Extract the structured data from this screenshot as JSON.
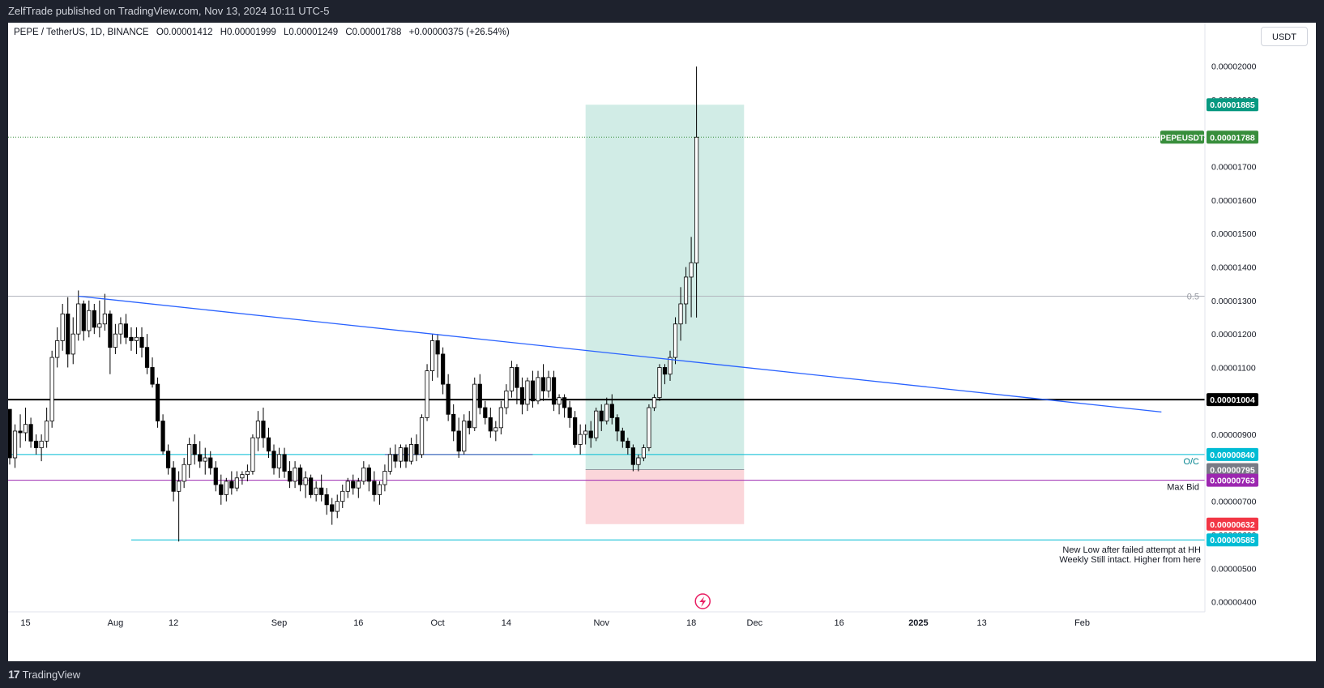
{
  "header": {
    "published_text": "ZelfTrade published on TradingView.com, Nov 13, 2024 10:11 UTC-5"
  },
  "legend": {
    "symbol": "PEPE / TetherUS, 1D, BINANCE",
    "open": "O0.00001412",
    "high": "H0.00001999",
    "low": "L0.00001249",
    "close": "C0.00001788",
    "change": "+0.00000375 (+26.54%)"
  },
  "currency_button": "USDT",
  "footer": {
    "brand": "TradingView",
    "logo_glyph": "17"
  },
  "annotations": {
    "fib_label": "0.5",
    "oc_label": "O/C",
    "max_bid_label": "Max Bid",
    "note_line1": "New Low after failed attempt at HH",
    "note_line2": "Weekly Still intact. Higher from here"
  },
  "colors": {
    "bull_body": "#ffffff",
    "bear_body": "#000000",
    "candle_outline": "#000000",
    "trendline": "#2962ff",
    "cyan_line": "#00bcd4",
    "purple_line": "#9c27b0",
    "profit_zone": "#d1ece6",
    "loss_zone": "#fbd6da"
  },
  "chart_data": {
    "type": "candlestick",
    "y_axis": {
      "range": [
        3.7e-06,
        2.13e-05
      ],
      "ticks": [
        "0.00002000",
        "0.00001900",
        "0.00001800",
        "0.00001700",
        "0.00001600",
        "0.00001500",
        "0.00001400",
        "0.00001300",
        "0.00001200",
        "0.00001100",
        "0.00001000",
        "0.00000900",
        "0.00000800",
        "0.00000700",
        "0.00000600",
        "0.00000500",
        "0.00000400"
      ]
    },
    "x_axis": {
      "ticks": [
        {
          "label": "15",
          "bar": 3
        },
        {
          "label": "Aug",
          "bar": 20
        },
        {
          "label": "12",
          "bar": 31
        },
        {
          "label": "Sep",
          "bar": 51
        },
        {
          "label": "16",
          "bar": 66
        },
        {
          "label": "Oct",
          "bar": 81
        },
        {
          "label": "14",
          "bar": 94
        },
        {
          "label": "Nov",
          "bar": 112
        },
        {
          "label": "18",
          "bar": 129
        },
        {
          "label": "Dec",
          "bar": 141
        },
        {
          "label": "16",
          "bar": 157
        },
        {
          "label": "2025",
          "bar": 172
        },
        {
          "label": "13",
          "bar": 184
        },
        {
          "label": "Feb",
          "bar": 203
        }
      ]
    },
    "candles": [
      [
        9.75e-06,
        9.75e-06,
        8.1e-06,
        8.3e-06
      ],
      [
        8.3e-06,
        9.3e-06,
        8e-06,
        9.1e-06
      ],
      [
        9.1e-06,
        9.6e-06,
        8.6e-06,
        9.05e-06
      ],
      [
        9.05e-06,
        9.8e-06,
        8.8e-06,
        9.3e-06
      ],
      [
        9.3e-06,
        9.5e-06,
        8.6e-06,
        8.8e-06
      ],
      [
        8.8e-06,
        9e-06,
        8.4e-06,
        8.6e-06
      ],
      [
        8.6e-06,
        9e-06,
        8.2e-06,
        8.8e-06
      ],
      [
        8.8e-06,
        9.8e-06,
        8.6e-06,
        9.4e-06
      ],
      [
        9.4e-06,
        1.15e-05,
        9.2e-06,
        1.13e-05
      ],
      [
        1.13e-05,
        1.22e-05,
        1.1e-05,
        1.18e-05
      ],
      [
        1.18e-05,
        1.29e-05,
        1.15e-05,
        1.26e-05
      ],
      [
        1.26e-05,
        1.31e-05,
        1.1e-05,
        1.14e-05
      ],
      [
        1.14e-05,
        1.25e-05,
        1.11e-05,
        1.2e-05
      ],
      [
        1.2e-05,
        1.33e-05,
        1.18e-05,
        1.29e-05
      ],
      [
        1.29e-05,
        1.3e-05,
        1.18e-05,
        1.21e-05
      ],
      [
        1.21e-05,
        1.3e-05,
        1.19e-05,
        1.27e-05
      ],
      [
        1.27e-05,
        1.29e-05,
        1.2e-05,
        1.22e-05
      ],
      [
        1.22e-05,
        1.3e-05,
        1.19e-05,
        1.23e-05
      ],
      [
        1.23e-05,
        1.32e-05,
        1.21e-05,
        1.26e-05
      ],
      [
        1.26e-05,
        1.27e-05,
        1.08e-05,
        1.16e-05
      ],
      [
        1.16e-05,
        1.23e-05,
        1.14e-05,
        1.2e-05
      ],
      [
        1.2e-05,
        1.25e-05,
        1.17e-05,
        1.23e-05
      ],
      [
        1.23e-05,
        1.26e-05,
        1.17e-05,
        1.19e-05
      ],
      [
        1.19e-05,
        1.22e-05,
        1.15e-05,
        1.18e-05
      ],
      [
        1.18e-05,
        1.22e-05,
        1.14e-05,
        1.19e-05
      ],
      [
        1.19e-05,
        1.22e-05,
        1.13e-05,
        1.16e-05
      ],
      [
        1.16e-05,
        1.2e-05,
        1.08e-05,
        1.1e-05
      ],
      [
        1.1e-05,
        1.13e-05,
        1.04e-05,
        1.05e-05
      ],
      [
        1.05e-05,
        1.07e-05,
        9.2e-06,
        9.4e-06
      ],
      [
        9.4e-06,
        9.6e-06,
        8.4e-06,
        8.5e-06
      ],
      [
        8.5e-06,
        8.7e-06,
        7.8e-06,
        8e-06
      ],
      [
        8e-06,
        8.2e-06,
        7e-06,
        7.3e-06
      ],
      [
        7.3e-06,
        7.9e-06,
        5.8e-06,
        7.6e-06
      ],
      [
        7.6e-06,
        8.3e-06,
        7.4e-06,
        8.1e-06
      ],
      [
        8.1e-06,
        8.9e-06,
        7.7e-06,
        8.7e-06
      ],
      [
        8.7e-06,
        9e-06,
        8.1e-06,
        8.4e-06
      ],
      [
        8.4e-06,
        8.8e-06,
        8e-06,
        8.2e-06
      ],
      [
        8.2e-06,
        8.6e-06,
        7.8e-06,
        8.3e-06
      ],
      [
        8.3e-06,
        8.5e-06,
        7.8e-06,
        8e-06
      ],
      [
        8e-06,
        8.2e-06,
        7.3e-06,
        7.5e-06
      ],
      [
        7.5e-06,
        7.8e-06,
        6.9e-06,
        7.2e-06
      ],
      [
        7.2e-06,
        7.7e-06,
        7e-06,
        7.6e-06
      ],
      [
        7.6e-06,
        7.9e-06,
        7.2e-06,
        7.4e-06
      ],
      [
        7.4e-06,
        7.9e-06,
        7.3e-06,
        7.7e-06
      ],
      [
        7.7e-06,
        7.9e-06,
        7.5e-06,
        7.8e-06
      ],
      [
        7.8e-06,
        8.1e-06,
        7.6e-06,
        7.9e-06
      ],
      [
        7.9e-06,
        9e-06,
        7.8e-06,
        8.9e-06
      ],
      [
        8.9e-06,
        9.7e-06,
        8.5e-06,
        9.4e-06
      ],
      [
        9.4e-06,
        9.8e-06,
        8.6e-06,
        8.9e-06
      ],
      [
        8.9e-06,
        9.2e-06,
        8.3e-06,
        8.5e-06
      ],
      [
        8.5e-06,
        8.7e-06,
        7.8e-06,
        8e-06
      ],
      [
        8e-06,
        8.6e-06,
        7.7e-06,
        8.4e-06
      ],
      [
        8.4e-06,
        8.6e-06,
        7.7e-06,
        7.9e-06
      ],
      [
        7.9e-06,
        8.2e-06,
        7.4e-06,
        7.6e-06
      ],
      [
        7.6e-06,
        8.2e-06,
        7.4e-06,
        8e-06
      ],
      [
        8e-06,
        8.1e-06,
        7.3e-06,
        7.5e-06
      ],
      [
        7.5e-06,
        7.9e-06,
        7.1e-06,
        7.7e-06
      ],
      [
        7.7e-06,
        7.8e-06,
        7.1e-06,
        7.2e-06
      ],
      [
        7.2e-06,
        7.6e-06,
        7e-06,
        7.4e-06
      ],
      [
        7.4e-06,
        7.8e-06,
        7e-06,
        7.2e-06
      ],
      [
        7.2e-06,
        7.4e-06,
        6.6e-06,
        6.9e-06
      ],
      [
        6.9e-06,
        7.1e-06,
        6.3e-06,
        6.7e-06
      ],
      [
        6.7e-06,
        7.2e-06,
        6.5e-06,
        7e-06
      ],
      [
        7e-06,
        7.5e-06,
        6.8e-06,
        7.3e-06
      ],
      [
        7.3e-06,
        7.7e-06,
        7.1e-06,
        7.6e-06
      ],
      [
        7.6e-06,
        7.8e-06,
        7.2e-06,
        7.4e-06
      ],
      [
        7.4e-06,
        7.7e-06,
        7.1e-06,
        7.6e-06
      ],
      [
        7.6e-06,
        8.2e-06,
        7.5e-06,
        8e-06
      ],
      [
        8e-06,
        8.1e-06,
        7.3e-06,
        7.6e-06
      ],
      [
        7.6e-06,
        7.9e-06,
        7e-06,
        7.2e-06
      ],
      [
        7.2e-06,
        7.6e-06,
        6.9e-06,
        7.5e-06
      ],
      [
        7.5e-06,
        8.1e-06,
        7.3e-06,
        7.9e-06
      ],
      [
        7.9e-06,
        8.6e-06,
        7.8e-06,
        8.4e-06
      ],
      [
        8.4e-06,
        8.7e-06,
        8e-06,
        8.2e-06
      ],
      [
        8.2e-06,
        8.7e-06,
        8e-06,
        8.6e-06
      ],
      [
        8.6e-06,
        8.7e-06,
        8e-06,
        8.2e-06
      ],
      [
        8.2e-06,
        8.9e-06,
        8.1e-06,
        8.7e-06
      ],
      [
        8.7e-06,
        9e-06,
        8.2e-06,
        8.4e-06
      ],
      [
        8.4e-06,
        9.6e-06,
        8.3e-06,
        9.5e-06
      ],
      [
        9.5e-06,
        1.11e-05,
        9.4e-06,
        1.09e-05
      ],
      [
        1.09e-05,
        1.2e-05,
        1.06e-05,
        1.18e-05
      ],
      [
        1.18e-05,
        1.2e-05,
        1.07e-05,
        1.14e-05
      ],
      [
        1.14e-05,
        1.16e-05,
        1.02e-05,
        1.05e-05
      ],
      [
        1.05e-05,
        1.08e-05,
        9.4e-06,
        9.6e-06
      ],
      [
        9.6e-06,
        9.9e-06,
        8.8e-06,
        9.1e-06
      ],
      [
        9.1e-06,
        9.5e-06,
        8.3e-06,
        8.5e-06
      ],
      [
        8.5e-06,
        9.6e-06,
        8.4e-06,
        9.4e-06
      ],
      [
        9.4e-06,
        9.7e-06,
        9e-06,
        9.2e-06
      ],
      [
        9.2e-06,
        1.07e-05,
        9.1e-06,
        1.05e-05
      ],
      [
        1.05e-05,
        1.08e-05,
        9.6e-06,
        9.8e-06
      ],
      [
        9.8e-06,
        1e-05,
        9.3e-06,
        9.5e-06
      ],
      [
        9.5e-06,
        9.8e-06,
        8.9e-06,
        9.1e-06
      ],
      [
        9.1e-06,
        9.4e-06,
        8.8e-06,
        9.2e-06
      ],
      [
        9.2e-06,
        1e-05,
        9e-06,
        9.8e-06
      ],
      [
        9.8e-06,
        1.05e-05,
        9.6e-06,
        1.03e-05
      ],
      [
        1.03e-05,
        1.12e-05,
        1.01e-05,
        1.1e-05
      ],
      [
        1.1e-05,
        1.11e-05,
        9.9e-06,
        1.04e-05
      ],
      [
        1.04e-05,
        1.07e-05,
        9.6e-06,
        9.9e-06
      ],
      [
        9.9e-06,
        1.07e-05,
        9.7e-06,
        1.06e-05
      ],
      [
        1.06e-05,
        1.09e-05,
        9.8e-06,
        1e-05
      ],
      [
        1e-05,
        1.09e-05,
        9.9e-06,
        1.07e-05
      ],
      [
        1.07e-05,
        1.11e-05,
        1e-05,
        1.03e-05
      ],
      [
        1.03e-05,
        1.09e-05,
        1.01e-05,
        1.07e-05
      ],
      [
        1.07e-05,
        1.09e-05,
        9.7e-06,
        9.9e-06
      ],
      [
        9.9e-06,
        1.02e-05,
        9.6e-06,
        1.01e-05
      ],
      [
        1.01e-05,
        1.02e-05,
        9.5e-06,
        9.8e-06
      ],
      [
        9.8e-06,
        1e-05,
        9.2e-06,
        9.5e-06
      ],
      [
        9.5e-06,
        9.7e-06,
        8.6e-06,
        8.7e-06
      ],
      [
        8.7e-06,
        9.3e-06,
        8.4e-06,
        9e-06
      ],
      [
        9e-06,
        9.3e-06,
        8.7e-06,
        9.1e-06
      ],
      [
        9.1e-06,
        9.4e-06,
        8.6e-06,
        8.9e-06
      ],
      [
        8.9e-06,
        9.8e-06,
        8.8e-06,
        9.7e-06
      ],
      [
        9.7e-06,
        9.9e-06,
        9.1e-06,
        9.4e-06
      ],
      [
        9.4e-06,
        1.01e-05,
        9.3e-06,
        9.9e-06
      ],
      [
        9.9e-06,
        1.02e-05,
        9.3e-06,
        9.5e-06
      ],
      [
        9.5e-06,
        9.6e-06,
        8.8e-06,
        9.1e-06
      ],
      [
        9.1e-06,
        9.2e-06,
        8.6e-06,
        8.8e-06
      ],
      [
        8.8e-06,
        8.9e-06,
        8.4e-06,
        8.6e-06
      ],
      [
        8.6e-06,
        8.7e-06,
        7.9e-06,
        8.1e-06
      ],
      [
        8.1e-06,
        8.4e-06,
        7.9e-06,
        8.3e-06
      ],
      [
        8.3e-06,
        8.7e-06,
        8.2e-06,
        8.6e-06
      ],
      [
        8.6e-06,
        9.9e-06,
        8.5e-06,
        9.8e-06
      ],
      [
        9.8e-06,
        1.02e-05,
        9.7e-06,
        1.01e-05
      ],
      [
        1.01e-05,
        1.11e-05,
        1e-05,
        1.1e-05
      ],
      [
        1.1e-05,
        1.11e-05,
        1.05e-05,
        1.08e-05
      ],
      [
        1.08e-05,
        1.15e-05,
        1.06e-05,
        1.13e-05
      ],
      [
        1.13e-05,
        1.25e-05,
        1.11e-05,
        1.23e-05
      ],
      [
        1.23e-05,
        1.34e-05,
        1.18e-05,
        1.29e-05
      ],
      [
        1.29e-05,
        1.4e-05,
        1.23e-05,
        1.37e-05
      ],
      [
        1.37e-05,
        1.49e-05,
        1.25e-05,
        1.413e-05
      ],
      [
        1.412e-05,
        1.999e-05,
        1.249e-05,
        1.788e-05
      ]
    ],
    "trendline": {
      "from": {
        "bar": 13,
        "price": 1.313e-05
      },
      "to": {
        "bar": 218,
        "price": 9.67e-06
      }
    },
    "horizontal_lines": [
      {
        "price": 1.313e-05,
        "color": "#b2b5be",
        "label": "0.5"
      },
      {
        "price": 1.004e-05,
        "color": "#000000",
        "label": ""
      },
      {
        "price": 8.4e-06,
        "color": "#00bcd4",
        "label": "O/C"
      },
      {
        "price": 7.63e-06,
        "color": "#9c27b0",
        "label": "Max Bid"
      },
      {
        "price": 5.85e-06,
        "color": "#00bcd4",
        "label": "",
        "from_bar": 23,
        "segment": true
      },
      {
        "price": 8.4e-06,
        "color": "#3f51b5",
        "label": "",
        "from_bar": 71,
        "to_bar": 99,
        "segment": true
      },
      {
        "price": 1.788e-05,
        "color": "#388e3c",
        "label": "",
        "dotted": true
      }
    ],
    "position": {
      "entry": 7.95e-06,
      "target": 1.885e-05,
      "stop": 6.32e-06,
      "from_bar": 109,
      "to_bar": 139
    },
    "price_labels": [
      {
        "text": "0.00001885",
        "bg": "#089981"
      },
      {
        "text": "0.00001788",
        "bg": "#388e3c"
      },
      {
        "text": "0.00001004",
        "bg": "#000000"
      },
      {
        "text": "0.00000840",
        "bg": "#00bcd4"
      },
      {
        "text": "0.00000795",
        "bg": "#787b86"
      },
      {
        "text": "0.00000763",
        "bg": "#9c27b0"
      },
      {
        "text": "0.00000632",
        "bg": "#f23645"
      },
      {
        "text": "0.00000585",
        "bg": "#00bcd4"
      }
    ],
    "symbol_tag": "PEPEUSDT"
  }
}
